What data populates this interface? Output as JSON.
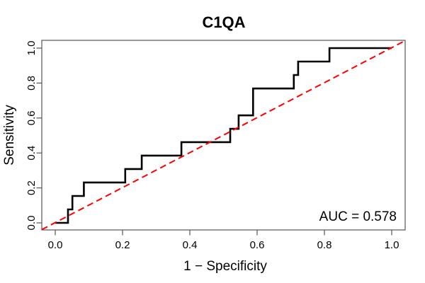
{
  "chart_data": {
    "type": "line",
    "subtype": "roc-step-curve",
    "title": "C1QA",
    "xlabel": "1 − Specificity",
    "ylabel": "Sensitivity",
    "annotation": "AUC = 0.578",
    "auc": 0.578,
    "xlim": [
      0,
      1
    ],
    "ylim": [
      0,
      1
    ],
    "grid": false,
    "legend": null,
    "xticks": {
      "values": [
        0,
        0.2,
        0.4,
        0.6,
        0.8,
        1.0
      ],
      "labels": [
        "0.0",
        "0.2",
        "0.4",
        "0.6",
        "0.8",
        "1.0"
      ]
    },
    "yticks": {
      "values": [
        0,
        0.2,
        0.4,
        0.6,
        0.8,
        1.0
      ],
      "labels": [
        "0.0",
        "0.2",
        "0.4",
        "0.6",
        "0.8",
        "1.0"
      ]
    },
    "colors": {
      "curve": "#000000",
      "diagonal": "#ff0000",
      "axis": "#555555",
      "text": "#000000",
      "background": "#ffffff"
    },
    "series": [
      {
        "name": "ROC curve",
        "type": "step",
        "color": "#000000",
        "width": 2.6,
        "points": [
          [
            0.0,
            0.0
          ],
          [
            0.038,
            0.0
          ],
          [
            0.038,
            0.077
          ],
          [
            0.051,
            0.077
          ],
          [
            0.051,
            0.154
          ],
          [
            0.085,
            0.154
          ],
          [
            0.085,
            0.231
          ],
          [
            0.208,
            0.231
          ],
          [
            0.208,
            0.308
          ],
          [
            0.257,
            0.308
          ],
          [
            0.257,
            0.385
          ],
          [
            0.375,
            0.385
          ],
          [
            0.375,
            0.462
          ],
          [
            0.52,
            0.462
          ],
          [
            0.52,
            0.538
          ],
          [
            0.545,
            0.538
          ],
          [
            0.545,
            0.615
          ],
          [
            0.588,
            0.615
          ],
          [
            0.588,
            0.769
          ],
          [
            0.709,
            0.769
          ],
          [
            0.709,
            0.846
          ],
          [
            0.722,
            0.846
          ],
          [
            0.722,
            0.923
          ],
          [
            0.815,
            0.923
          ],
          [
            0.815,
            1.0
          ],
          [
            1.0,
            1.0
          ]
        ]
      },
      {
        "name": "chance line",
        "type": "diagonal",
        "style": "dashed",
        "color": "#ff0000",
        "width": 2,
        "points": [
          [
            0,
            0
          ],
          [
            1,
            1
          ]
        ]
      }
    ]
  }
}
